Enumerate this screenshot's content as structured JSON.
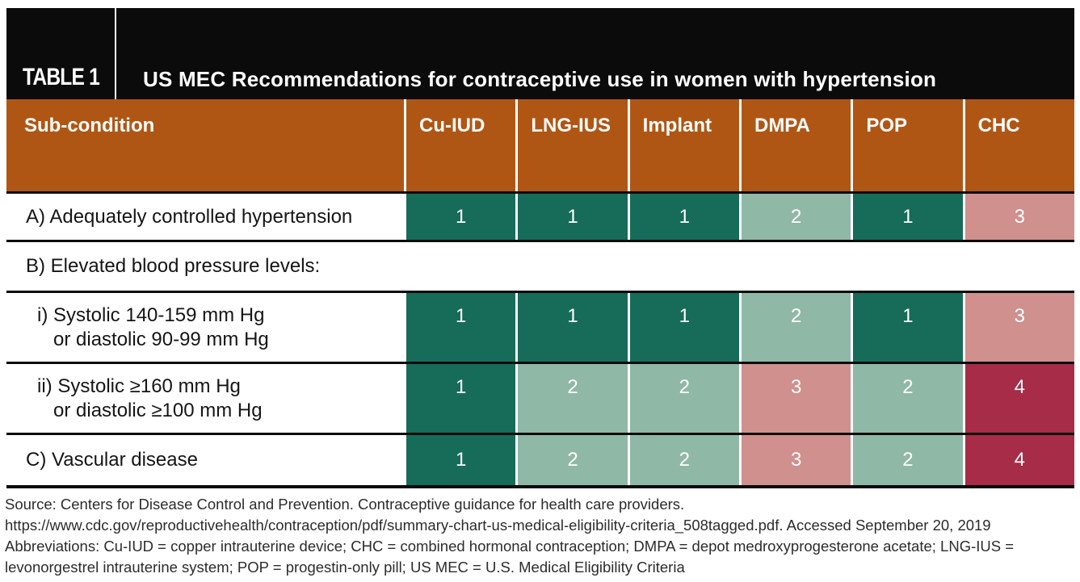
{
  "chart_data": {
    "type": "table",
    "table_label": "TABLE 1",
    "title": "US MEC Recommendations for contraceptive use in women with hypertension",
    "columns": [
      "Sub-condition",
      "Cu-IUD",
      "LNG-IUS",
      "Implant",
      "DMPA",
      "POP",
      "CHC"
    ],
    "rows": [
      {
        "id": "A",
        "label": "A) Adequately controlled hypertension",
        "values": [
          "1",
          "1",
          "1",
          "2",
          "1",
          "3"
        ]
      },
      {
        "id": "B",
        "label": "B) Elevated blood pressure levels:",
        "values": []
      },
      {
        "id": "Bi",
        "label_lines": [
          "i) Systolic 140-159 mm Hg",
          "or diastolic 90-99 mm Hg"
        ],
        "values": [
          "1",
          "1",
          "1",
          "2",
          "1",
          "3"
        ]
      },
      {
        "id": "Bii",
        "label_lines": [
          "ii) Systolic ≥160 mm Hg",
          "or diastolic ≥100 mm Hg"
        ],
        "values": [
          "1",
          "2",
          "2",
          "3",
          "2",
          "4"
        ]
      },
      {
        "id": "C",
        "label": "C) Vascular disease",
        "values": [
          "1",
          "2",
          "2",
          "3",
          "2",
          "4"
        ]
      }
    ],
    "cell_colors": {
      "1": "#166C58",
      "2": "#90B8A6",
      "3": "#CF908E",
      "4": "#A62C48"
    },
    "header_color": "#B05615",
    "band_color": "#0B0B0B"
  },
  "footer": {
    "lines": [
      "Source: Centers for Disease Control and Prevention. Contraceptive guidance for health care providers.",
      "https://www.cdc.gov/reproductivehealth/contraception/pdf/summary-chart-us-medical-eligibility-criteria_508tagged.pdf. Accessed September 20, 2019",
      "Abbreviations: Cu-IUD = copper intrauterine device; CHC = combined hormonal contraception; DMPA = depot medroxyprogesterone acetate; LNG-IUS =",
      "levonorgestrel intrauterine system; POP = progestin-only pill; US MEC = U.S. Medical Eligibility Criteria"
    ]
  }
}
